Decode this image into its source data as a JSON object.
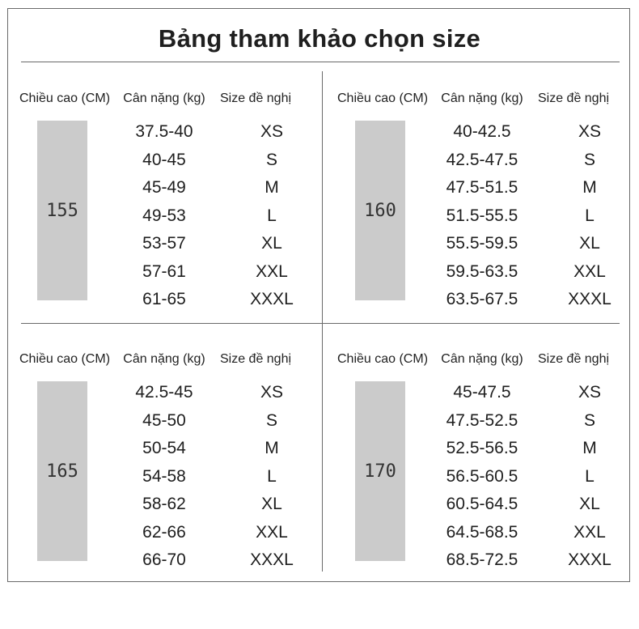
{
  "title": "Bảng tham khảo chọn size",
  "headers": {
    "height": "Chiều cao (CM)",
    "weight": "Cân nặng (kg)",
    "size": "Size đề nghị"
  },
  "tables": [
    {
      "height": "155",
      "rows": [
        {
          "weight": "37.5-40",
          "size": "XS"
        },
        {
          "weight": "40-45",
          "size": "S"
        },
        {
          "weight": "45-49",
          "size": "M"
        },
        {
          "weight": "49-53",
          "size": "L"
        },
        {
          "weight": "53-57",
          "size": "XL"
        },
        {
          "weight": "57-61",
          "size": "XXL"
        },
        {
          "weight": "61-65",
          "size": "XXXL"
        }
      ]
    },
    {
      "height": "160",
      "rows": [
        {
          "weight": "40-42.5",
          "size": "XS"
        },
        {
          "weight": "42.5-47.5",
          "size": "S"
        },
        {
          "weight": "47.5-51.5",
          "size": "M"
        },
        {
          "weight": "51.5-55.5",
          "size": "L"
        },
        {
          "weight": "55.5-59.5",
          "size": "XL"
        },
        {
          "weight": "59.5-63.5",
          "size": "XXL"
        },
        {
          "weight": "63.5-67.5",
          "size": "XXXL"
        }
      ]
    },
    {
      "height": "165",
      "rows": [
        {
          "weight": "42.5-45",
          "size": "XS"
        },
        {
          "weight": "45-50",
          "size": "S"
        },
        {
          "weight": "50-54",
          "size": "M"
        },
        {
          "weight": "54-58",
          "size": "L"
        },
        {
          "weight": "58-62",
          "size": "XL"
        },
        {
          "weight": "62-66",
          "size": "XXL"
        },
        {
          "weight": "66-70",
          "size": "XXXL"
        }
      ]
    },
    {
      "height": "170",
      "rows": [
        {
          "weight": "45-47.5",
          "size": "XS"
        },
        {
          "weight": "47.5-52.5",
          "size": "S"
        },
        {
          "weight": "52.5-56.5",
          "size": "M"
        },
        {
          "weight": "56.5-60.5",
          "size": "L"
        },
        {
          "weight": "60.5-64.5",
          "size": "XL"
        },
        {
          "weight": "64.5-68.5",
          "size": "XXL"
        },
        {
          "weight": "68.5-72.5",
          "size": "XXXL"
        }
      ]
    }
  ],
  "colors": {
    "height_box": "#cbcbcb",
    "rules": "#6a6a6a",
    "text": "#1e1e1e"
  }
}
